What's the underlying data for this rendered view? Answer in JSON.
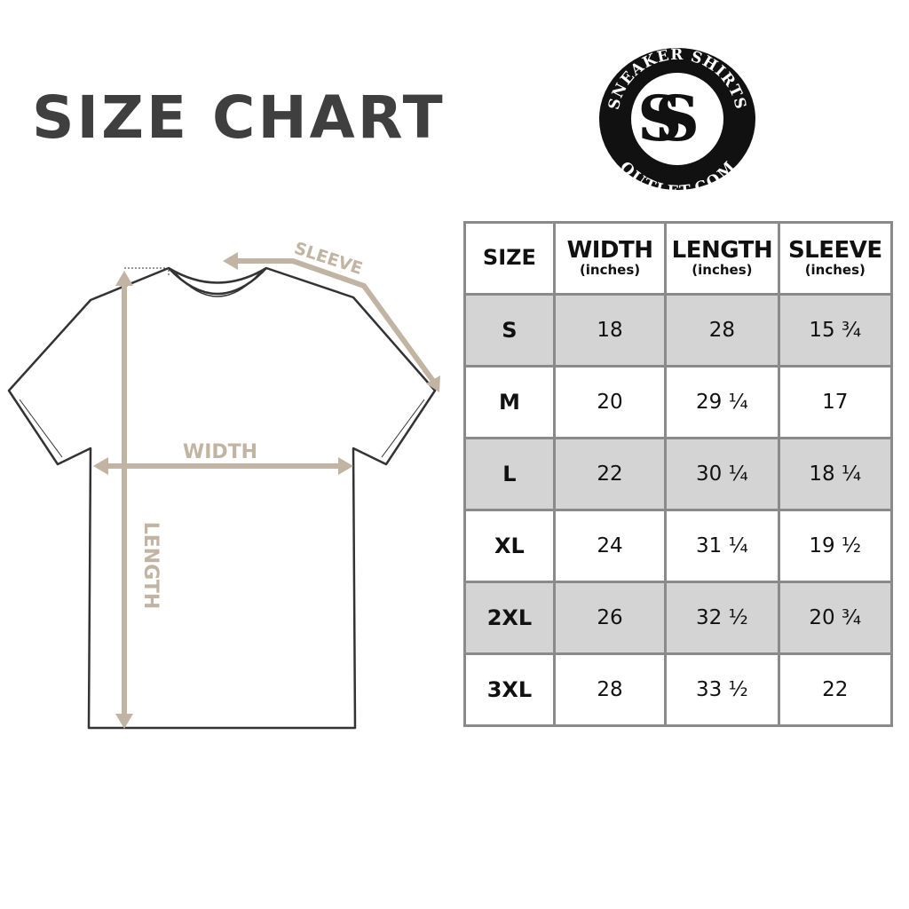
{
  "title": "SIZE CHART",
  "logo": {
    "text_top": "SNEAKER SHIRTS",
    "text_bottom": "OUTLET.COM",
    "monogram": "SS"
  },
  "diagram": {
    "sleeve_label": "SLEEVE",
    "width_label": "WIDTH",
    "length_label": "LENGTH",
    "arrow_color": "#c2b4a2"
  },
  "table": {
    "headers": [
      {
        "label": "SIZE",
        "unit": ""
      },
      {
        "label": "WIDTH",
        "unit": "(inches)"
      },
      {
        "label": "LENGTH",
        "unit": "(inches)"
      },
      {
        "label": "SLEEVE",
        "unit": "(inches)"
      }
    ],
    "rows": [
      {
        "size": "S",
        "width": "18",
        "length": "28",
        "sleeve": "15 ¾"
      },
      {
        "size": "M",
        "width": "20",
        "length": "29 ¼",
        "sleeve": "17"
      },
      {
        "size": "L",
        "width": "22",
        "length": "30 ¼",
        "sleeve": "18 ¼"
      },
      {
        "size": "XL",
        "width": "24",
        "length": "31 ¼",
        "sleeve": "19 ½"
      },
      {
        "size": "2XL",
        "width": "26",
        "length": "32 ½",
        "sleeve": "20 ¾"
      },
      {
        "size": "3XL",
        "width": "28",
        "length": "33 ½",
        "sleeve": "22"
      }
    ],
    "stripe_color": "#d4d4d4"
  }
}
